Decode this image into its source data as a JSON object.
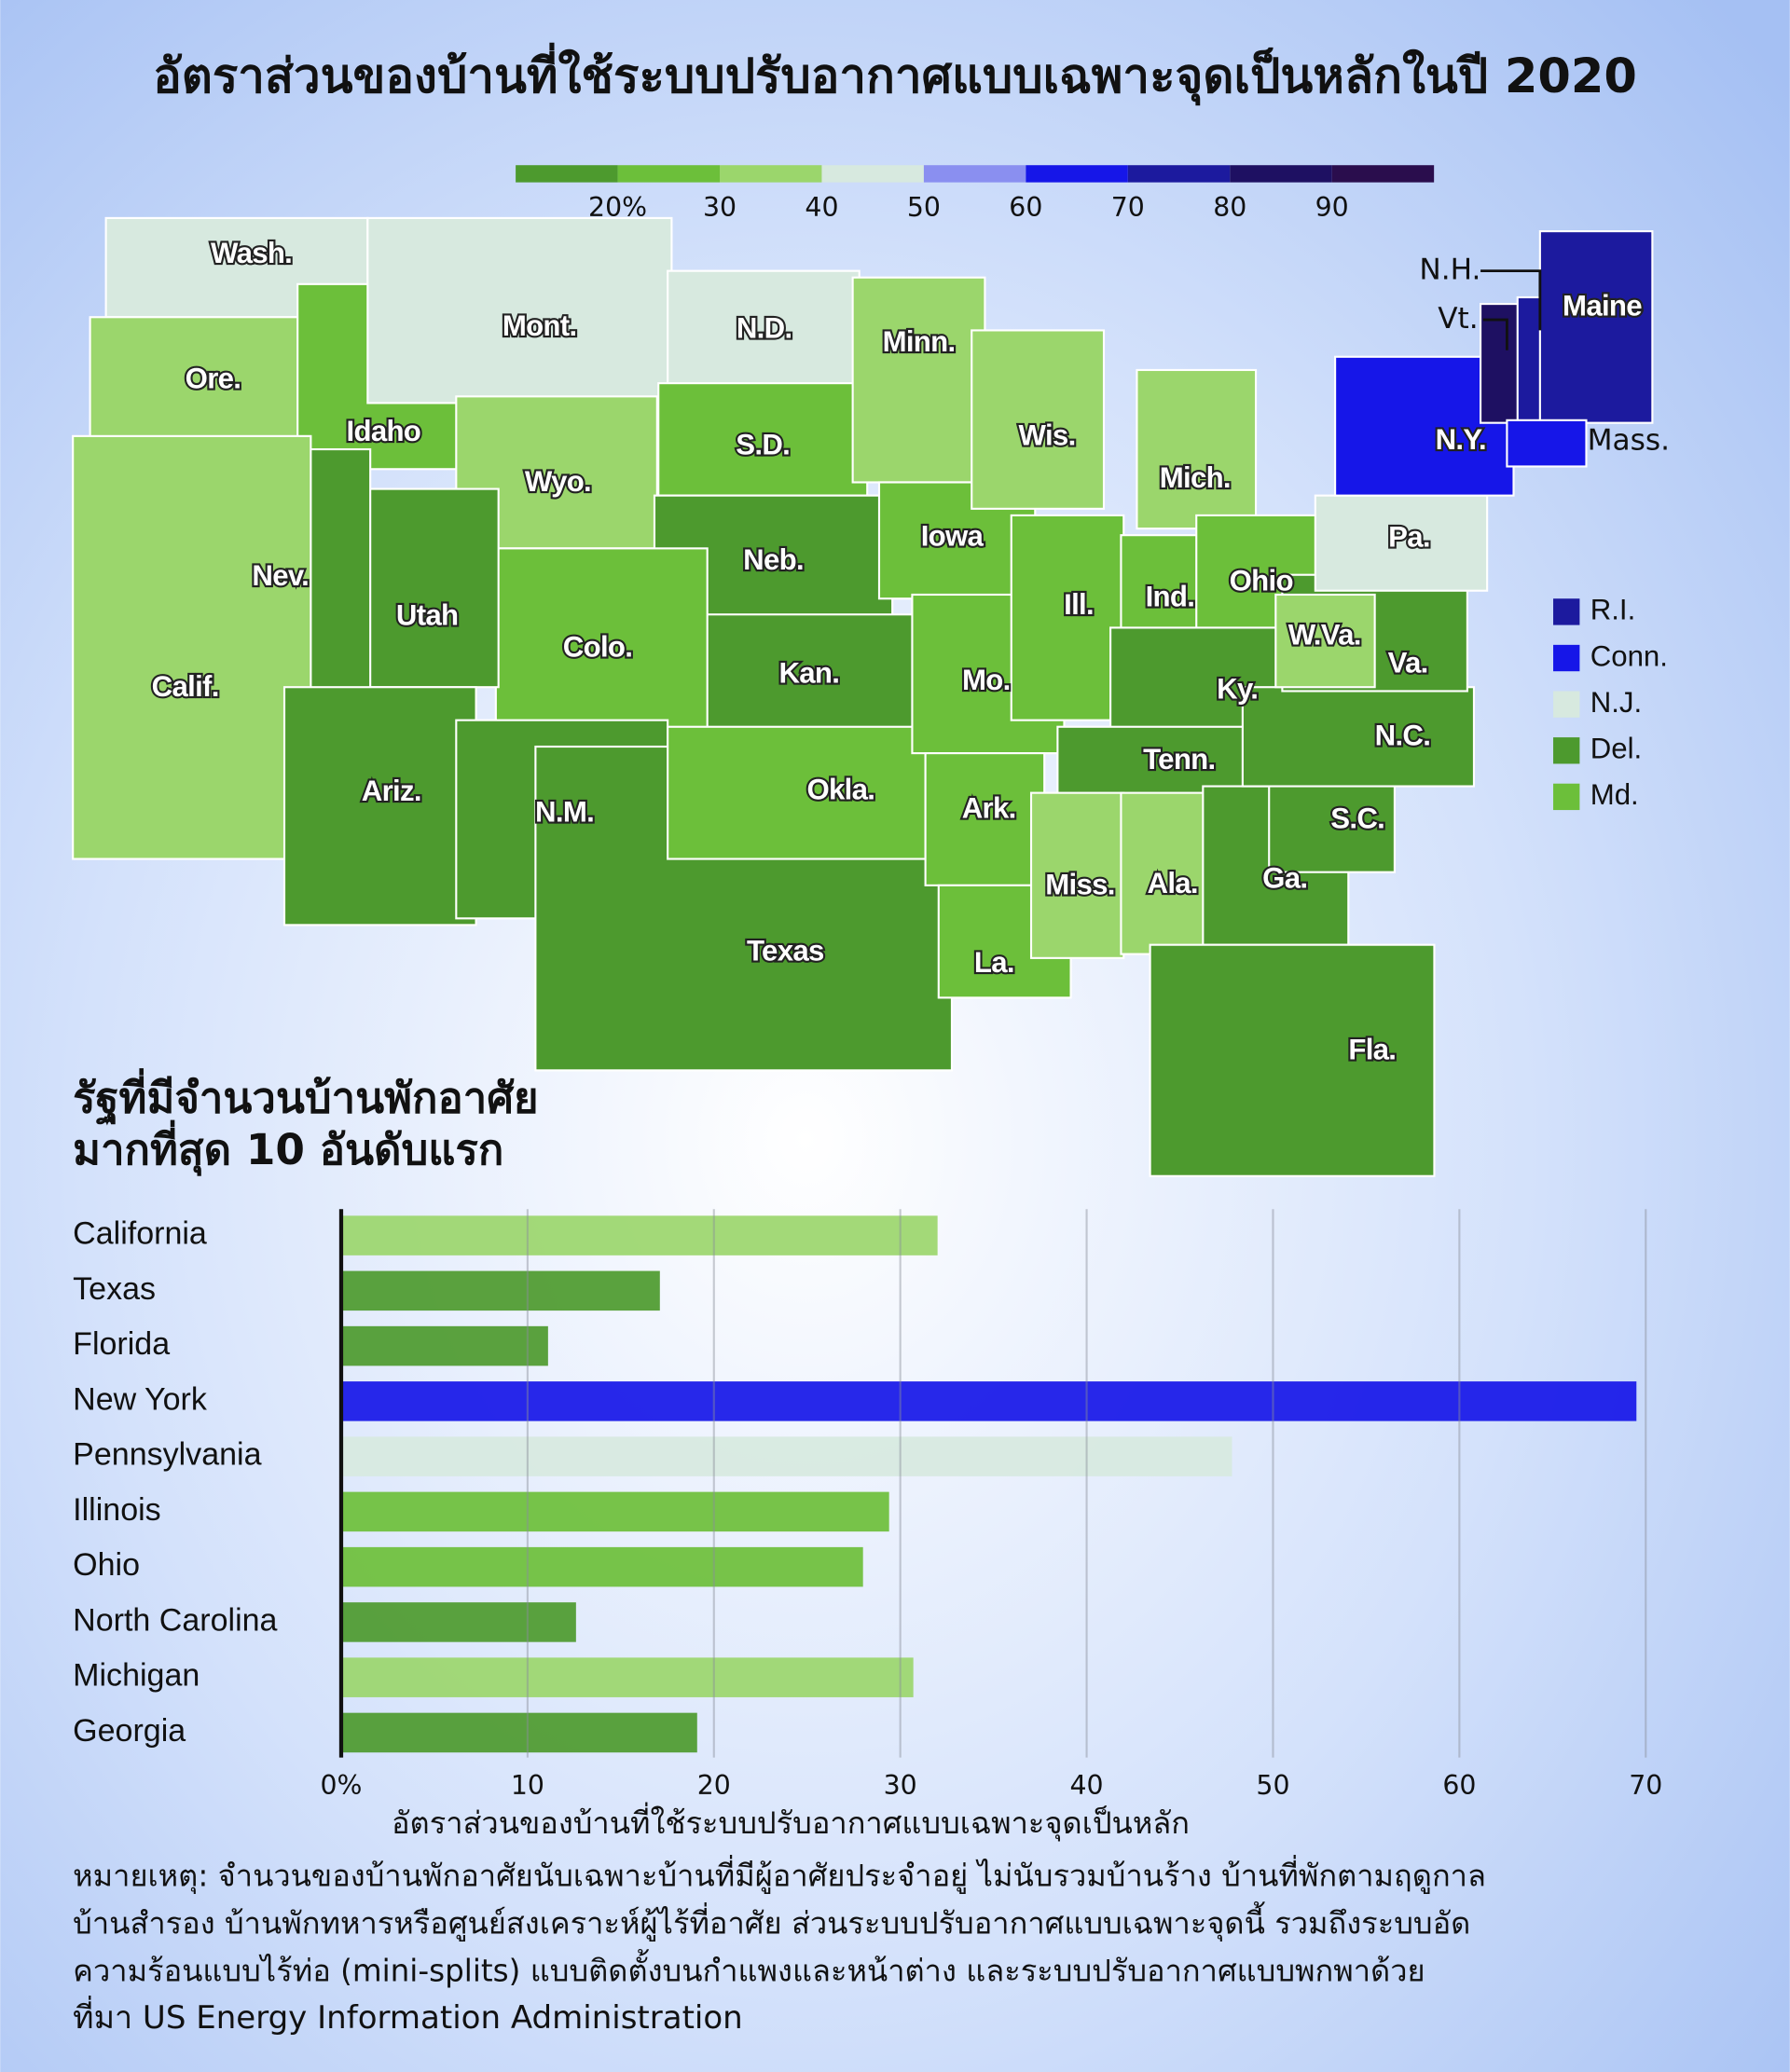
{
  "title": "อัตราส่วนของบ้านที่ใช้ระบบปรับอากาศแบบเฉพาะจุดเป็นหลักในปี 2020",
  "legend": {
    "colors": [
      "#4d9a2e",
      "#6cbf3a",
      "#9bd66c",
      "#d7e9df",
      "#8a8ff0",
      "#1616e8",
      "#1c1a9e",
      "#1e1062",
      "#2a0d4d"
    ],
    "ticks": [
      {
        "value": 20,
        "label": "20%"
      },
      30,
      40,
      50,
      60,
      70,
      80,
      90
    ]
  },
  "map": {
    "states": [
      {
        "label": "Wash.",
        "color": "#d7e9df"
      },
      {
        "label": "Ore.",
        "color": "#9bd66c"
      },
      {
        "label": "Idaho",
        "color": "#6cbf3a"
      },
      {
        "label": "Mont.",
        "color": "#d7e9df"
      },
      {
        "label": "Wyo.",
        "color": "#9bd66c"
      },
      {
        "label": "N.D.",
        "color": "#d7e9df"
      },
      {
        "label": "S.D.",
        "color": "#6cbf3a"
      },
      {
        "label": "Neb.",
        "color": "#4d9a2e"
      },
      {
        "label": "Kan.",
        "color": "#4d9a2e"
      },
      {
        "label": "Colo.",
        "color": "#6cbf3a"
      },
      {
        "label": "Utah",
        "color": "#4d9a2e"
      },
      {
        "label": "Nev.",
        "color": "#4d9a2e"
      },
      {
        "label": "Calif.",
        "color": "#9bd66c"
      },
      {
        "label": "Ariz.",
        "color": "#4d9a2e"
      },
      {
        "label": "N.M.",
        "color": "#4d9a2e"
      },
      {
        "label": "Texas",
        "color": "#4d9a2e"
      },
      {
        "label": "Okla.",
        "color": "#6cbf3a"
      },
      {
        "label": "Minn.",
        "color": "#9bd66c"
      },
      {
        "label": "Iowa",
        "color": "#6cbf3a"
      },
      {
        "label": "Mo.",
        "color": "#6cbf3a"
      },
      {
        "label": "Ark.",
        "color": "#6cbf3a"
      },
      {
        "label": "La.",
        "color": "#6cbf3a"
      },
      {
        "label": "Wis.",
        "color": "#9bd66c"
      },
      {
        "label": "Ill.",
        "color": "#6cbf3a"
      },
      {
        "label": "Mich.",
        "color": "#9bd66c"
      },
      {
        "label": "Ind.",
        "color": "#6cbf3a"
      },
      {
        "label": "Ohio",
        "color": "#6cbf3a"
      },
      {
        "label": "Ky.",
        "color": "#4d9a2e"
      },
      {
        "label": "Tenn.",
        "color": "#4d9a2e"
      },
      {
        "label": "Miss.",
        "color": "#9bd66c"
      },
      {
        "label": "Ala.",
        "color": "#9bd66c"
      },
      {
        "label": "Ga.",
        "color": "#4d9a2e"
      },
      {
        "label": "Fla.",
        "color": "#4d9a2e"
      },
      {
        "label": "S.C.",
        "color": "#4d9a2e"
      },
      {
        "label": "N.C.",
        "color": "#4d9a2e"
      },
      {
        "label": "Va.",
        "color": "#4d9a2e"
      },
      {
        "label": "W.Va.",
        "color": "#9bd66c"
      },
      {
        "label": "Pa.",
        "color": "#d7e9df"
      },
      {
        "label": "N.Y.",
        "color": "#1616e8"
      },
      {
        "label": "Vt.",
        "color": "#1e1062"
      },
      {
        "label": "N.H.",
        "color": "#1c1a9e"
      },
      {
        "label": "Maine",
        "color": "#1c1a9e"
      },
      {
        "label": "Mass.",
        "color": "#1616e8"
      }
    ],
    "small_states": [
      {
        "label": "R.I.",
        "color": "#1c1a9e"
      },
      {
        "label": "Conn.",
        "color": "#1616e8"
      },
      {
        "label": "N.J.",
        "color": "#d7e9df"
      },
      {
        "label": "Del.",
        "color": "#4d9a2e"
      },
      {
        "label": "Md.",
        "color": "#6cbf3a"
      }
    ]
  },
  "chart_data": {
    "type": "bar",
    "orientation": "horizontal",
    "title": [
      "รัฐที่มีจำนวนบ้านพักอาศัย",
      "มากที่สุด 10 อันดับแรก"
    ],
    "categories": [
      "California",
      "Texas",
      "Florida",
      "New York",
      "Pennsylvania",
      "Illinois",
      "Ohio",
      "North Carolina",
      "Michigan",
      "Georgia"
    ],
    "values": [
      32,
      17.1,
      11.1,
      69.5,
      47.8,
      29.4,
      28,
      12.6,
      30.7,
      19.1
    ],
    "colors": [
      "#9bd66c",
      "#4d9a2e",
      "#4d9a2e",
      "#1616e8",
      "#d7e9df",
      "#6cbf3a",
      "#6cbf3a",
      "#4d9a2e",
      "#9bd66c",
      "#4d9a2e"
    ],
    "xlim": [
      0,
      70
    ],
    "xticks": [
      {
        "value": 0,
        "label": "0%"
      },
      10,
      20,
      30,
      40,
      50,
      60,
      70
    ],
    "grid": true,
    "xlabel": "อัตราส่วนของบ้านที่ใช้ระบบปรับอากาศแบบเฉพาะจุดเป็นหลัก"
  },
  "note": [
    "หมายเหตุ: จำนวนของบ้านพักอาศัยนับเฉพาะบ้านที่มีผู้อาศัยประจำอยู่ ไม่นับรวมบ้านร้าง บ้านที่พักตามฤดูกาล",
    "บ้านสำรอง บ้านพักทหารหรือศูนย์สงเคราะห์ผู้ไร้ที่อาศัย ส่วนระบบปรับอากาศแบบเฉพาะจุดนี้ รวมถึงระบบอัด",
    "ความร้อนแบบไร้ท่อ (mini-splits) แบบติดตั้งบนกำแพงและหน้าต่าง และระบบปรับอากาศแบบพกพาด้วย"
  ],
  "source": "ที่มา US Energy Information Administration"
}
